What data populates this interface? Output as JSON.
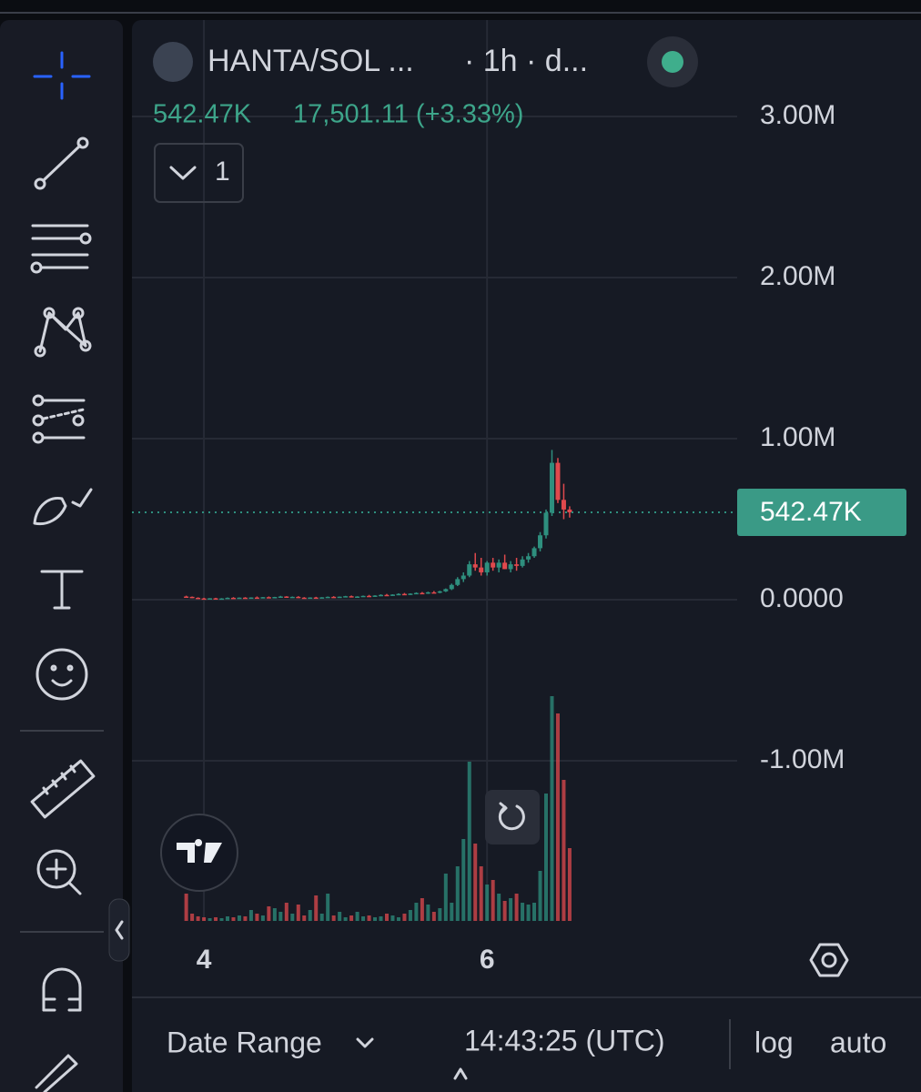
{
  "header": {
    "symbol": "HANTA/SOL ...",
    "interval": "· 1h · d...",
    "last": "542.47K",
    "change": "17,501.11 (+3.33%)",
    "indicators": "1"
  },
  "chart_data": {
    "type": "candlestick",
    "x": [
      -3,
      -2,
      -1,
      0,
      1,
      2,
      3,
      4,
      5,
      6,
      7,
      8,
      9,
      10,
      11,
      12,
      13,
      14,
      15,
      16,
      17,
      18,
      19,
      20,
      21,
      22,
      23,
      24,
      25,
      26,
      27,
      28,
      29,
      30,
      31,
      32,
      33,
      34,
      35,
      36,
      37,
      38,
      39,
      40,
      41,
      42,
      43,
      44,
      45,
      46,
      47,
      48,
      49,
      50,
      51,
      52,
      53,
      54,
      55,
      56,
      57,
      58,
      59,
      60,
      61,
      62
    ],
    "open": [
      20000,
      18000,
      12000,
      8000,
      6000,
      9000,
      7000,
      8000,
      12000,
      10000,
      13000,
      11000,
      14000,
      12000,
      16000,
      13000,
      17000,
      20000,
      15000,
      18000,
      13000,
      11000,
      14000,
      12000,
      15000,
      18000,
      16000,
      19000,
      22000,
      18000,
      20000,
      24000,
      22000,
      26000,
      30000,
      28000,
      32000,
      36000,
      34000,
      38000,
      42000,
      40000,
      46000,
      44000,
      52000,
      66000,
      92000,
      128000,
      150000,
      220000,
      200000,
      170000,
      230000,
      200000,
      230000,
      190000,
      220000,
      210000,
      250000,
      270000,
      320000,
      400000,
      540000,
      850000,
      620000,
      560000
    ],
    "high": [
      25000,
      20000,
      15000,
      12000,
      10000,
      12000,
      10000,
      14000,
      16000,
      14000,
      16000,
      15000,
      20000,
      17000,
      20000,
      18000,
      24000,
      22000,
      20000,
      22000,
      16000,
      15000,
      18000,
      16000,
      20000,
      22000,
      20000,
      24000,
      26000,
      22000,
      26000,
      30000,
      28000,
      34000,
      36000,
      34000,
      40000,
      42000,
      40000,
      46000,
      48000,
      50000,
      54000,
      56000,
      70000,
      100000,
      140000,
      170000,
      240000,
      290000,
      260000,
      240000,
      260000,
      250000,
      280000,
      240000,
      260000,
      270000,
      290000,
      330000,
      420000,
      560000,
      930000,
      880000,
      720000,
      580000
    ],
    "low": [
      15000,
      10000,
      5000,
      4000,
      3000,
      5000,
      4000,
      6000,
      8000,
      7000,
      9000,
      8000,
      10000,
      9000,
      11000,
      10000,
      14000,
      12000,
      12000,
      10000,
      9000,
      8000,
      10000,
      9000,
      12000,
      14000,
      12000,
      16000,
      15000,
      14000,
      18000,
      20000,
      18000,
      22000,
      24000,
      24000,
      28000,
      30000,
      30000,
      34000,
      36000,
      36000,
      40000,
      40000,
      48000,
      60000,
      85000,
      110000,
      140000,
      180000,
      150000,
      150000,
      180000,
      170000,
      190000,
      170000,
      180000,
      200000,
      230000,
      260000,
      300000,
      380000,
      520000,
      600000,
      500000,
      510000
    ],
    "close": [
      18000,
      12000,
      8000,
      6000,
      9000,
      7000,
      8000,
      12000,
      10000,
      13000,
      11000,
      14000,
      12000,
      16000,
      13000,
      17000,
      20000,
      15000,
      18000,
      13000,
      11000,
      14000,
      12000,
      15000,
      18000,
      16000,
      19000,
      22000,
      18000,
      20000,
      24000,
      22000,
      26000,
      30000,
      28000,
      32000,
      36000,
      34000,
      38000,
      42000,
      40000,
      46000,
      44000,
      52000,
      66000,
      92000,
      128000,
      150000,
      220000,
      200000,
      170000,
      230000,
      200000,
      230000,
      190000,
      220000,
      210000,
      250000,
      270000,
      320000,
      400000,
      540000,
      850000,
      620000,
      560000,
      542470
    ],
    "volume": [
      30,
      8,
      5,
      4,
      3,
      4,
      3,
      5,
      4,
      6,
      5,
      12,
      8,
      6,
      16,
      14,
      10,
      20,
      8,
      18,
      6,
      12,
      28,
      8,
      30,
      6,
      10,
      4,
      6,
      10,
      5,
      6,
      4,
      5,
      8,
      6,
      4,
      8,
      12,
      20,
      25,
      18,
      10,
      14,
      52,
      20,
      60,
      90,
      175,
      85,
      60,
      40,
      45,
      30,
      22,
      25,
      30,
      20,
      18,
      20,
      55,
      140,
      247,
      228,
      155,
      80
    ],
    "up_color": "#2e8f7e",
    "down_color": "#e0494d",
    "xlim": [
      -12.2,
      90.4
    ],
    "xticks": [
      {
        "value": 0,
        "label": "4"
      },
      {
        "value": 48,
        "label": "6"
      }
    ],
    "ylim": [
      -1994000,
      3599000
    ],
    "yticks": [
      {
        "value": -1000000,
        "label": "-1.00M"
      },
      {
        "value": 0,
        "label": "0.0000"
      },
      {
        "value": 1000000,
        "label": "1.00M"
      },
      {
        "value": 2000000,
        "label": "2.00M"
      },
      {
        "value": 3000000,
        "label": "3.00M"
      }
    ],
    "price_line": {
      "value": 542470,
      "label": "542.47K"
    },
    "grid": true
  },
  "footer": {
    "range": "Date Range",
    "clock": "14:43:25 (UTC)",
    "log": "log",
    "auto": "auto"
  }
}
